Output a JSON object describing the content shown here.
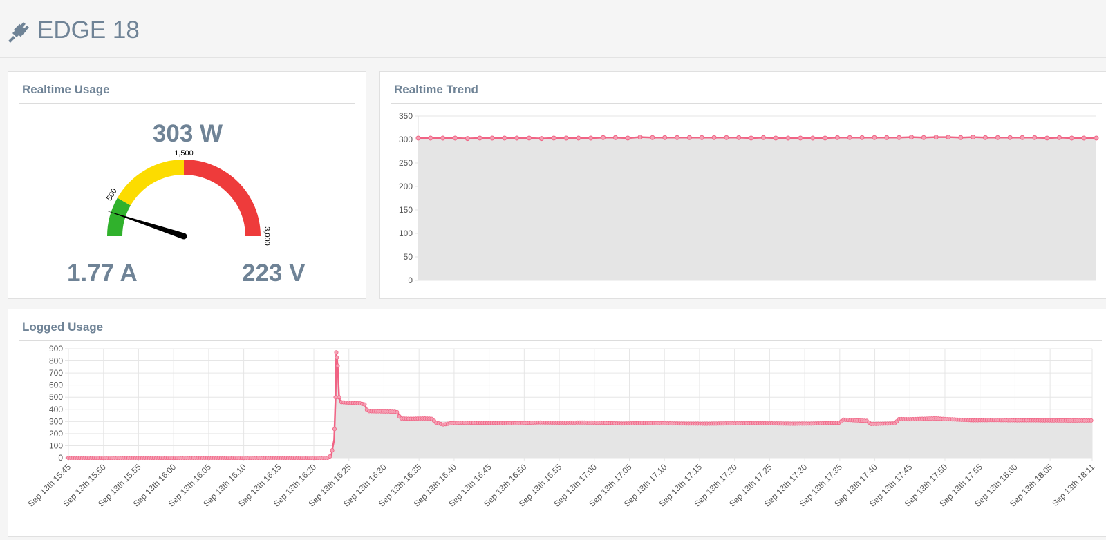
{
  "header": {
    "title": "EDGE 18",
    "icon": "plug-icon"
  },
  "usage_panel": {
    "title": "Realtime Usage",
    "watts": "303 W",
    "amps": "1.77 A",
    "volts": "223 V",
    "gauge": {
      "min": 0,
      "max": 3000,
      "value": 303,
      "ticks": [
        "500",
        "1,500",
        "3,000"
      ],
      "bands": [
        {
          "from": 0,
          "to": 500,
          "color": "#30b12c"
        },
        {
          "from": 500,
          "to": 1500,
          "color": "#fcdc00"
        },
        {
          "from": 1500,
          "to": 3000,
          "color": "#ee3b3b"
        }
      ]
    }
  },
  "trend_panel": {
    "title": "Realtime Trend"
  },
  "logged_panel": {
    "title": "Logged Usage"
  },
  "chart_data": [
    {
      "type": "area",
      "title": "Realtime Trend",
      "ylim": [
        0,
        350
      ],
      "yticks": [
        "0",
        "50",
        "100",
        "150",
        "200",
        "250",
        "300",
        "350"
      ],
      "grid": true,
      "line_color": "#f06384",
      "fill_color": "#e5e5e5",
      "values": [
        303,
        303,
        303,
        303,
        302,
        303,
        303,
        303,
        303,
        303,
        302,
        303,
        303,
        303,
        303,
        304,
        304,
        303,
        305,
        304,
        304,
        304,
        304,
        304,
        304,
        304,
        304,
        303,
        304,
        303,
        303,
        303,
        303,
        303,
        304,
        304,
        304,
        304,
        304,
        304,
        305,
        304,
        305,
        305,
        304,
        305,
        304,
        304,
        304,
        304,
        304,
        303,
        304,
        303,
        303,
        303
      ]
    },
    {
      "type": "area",
      "title": "Logged Usage",
      "ylim": [
        0,
        900
      ],
      "yticks": [
        "0",
        "100",
        "200",
        "300",
        "400",
        "500",
        "600",
        "700",
        "800",
        "900"
      ],
      "grid": true,
      "line_color": "#f06384",
      "fill_color": "#e5e5e5",
      "x_labels": [
        "Sep 13th 15:45",
        "Sep 13th 15:50",
        "Sep 13th 15:55",
        "Sep 13th 16:00",
        "Sep 13th 16:05",
        "Sep 13th 16:10",
        "Sep 13th 16:15",
        "Sep 13th 16:20",
        "Sep 13th 16:25",
        "Sep 13th 16:30",
        "Sep 13th 16:35",
        "Sep 13th 16:40",
        "Sep 13th 16:45",
        "Sep 13th 16:50",
        "Sep 13th 16:55",
        "Sep 13th 17:00",
        "Sep 13th 17:05",
        "Sep 13th 17:10",
        "Sep 13th 17:15",
        "Sep 13th 17:20",
        "Sep 13th 17:25",
        "Sep 13th 17:30",
        "Sep 13th 17:35",
        "Sep 13th 17:40",
        "Sep 13th 17:45",
        "Sep 13th 17:50",
        "Sep 13th 17:55",
        "Sep 13th 18:00",
        "Sep 13th 18:05",
        "Sep 13th 18:11"
      ],
      "points": [
        [
          0,
          0
        ],
        [
          37,
          0
        ],
        [
          37.5,
          20
        ],
        [
          37.7,
          90
        ],
        [
          37.9,
          150
        ],
        [
          38.1,
          500
        ],
        [
          38.2,
          870
        ],
        [
          38.4,
          760
        ],
        [
          38.6,
          500
        ],
        [
          38.8,
          460
        ],
        [
          40,
          455
        ],
        [
          41.5,
          450
        ],
        [
          42.3,
          440
        ],
        [
          42.5,
          400
        ],
        [
          42.8,
          385
        ],
        [
          45,
          383
        ],
        [
          46.8,
          380
        ],
        [
          47,
          370
        ],
        [
          47.3,
          325
        ],
        [
          49,
          322
        ],
        [
          50.5,
          325
        ],
        [
          51.5,
          323
        ],
        [
          52,
          320
        ],
        [
          52.3,
          290
        ],
        [
          53.5,
          275
        ],
        [
          54.5,
          285
        ],
        [
          56,
          290
        ],
        [
          60,
          288
        ],
        [
          64,
          285
        ],
        [
          67,
          292
        ],
        [
          70,
          290
        ],
        [
          73,
          292
        ],
        [
          76,
          290
        ],
        [
          79,
          283
        ],
        [
          82,
          288
        ],
        [
          85,
          285
        ],
        [
          88,
          283
        ],
        [
          91,
          282
        ],
        [
          94,
          284
        ],
        [
          97,
          286
        ],
        [
          100,
          285
        ],
        [
          103,
          282
        ],
        [
          106,
          283
        ],
        [
          109,
          288
        ],
        [
          110,
          290
        ],
        [
          110.5,
          315
        ],
        [
          112,
          310
        ],
        [
          114,
          305
        ],
        [
          114.2,
          290
        ],
        [
          114.5,
          280
        ],
        [
          117,
          283
        ],
        [
          118,
          285
        ],
        [
          118.3,
          320
        ],
        [
          120,
          318
        ],
        [
          122,
          322
        ],
        [
          123.8,
          325
        ],
        [
          125,
          320
        ],
        [
          127,
          315
        ],
        [
          129,
          310
        ],
        [
          132,
          312
        ],
        [
          135,
          310
        ],
        [
          146,
          308
        ]
      ]
    }
  ]
}
